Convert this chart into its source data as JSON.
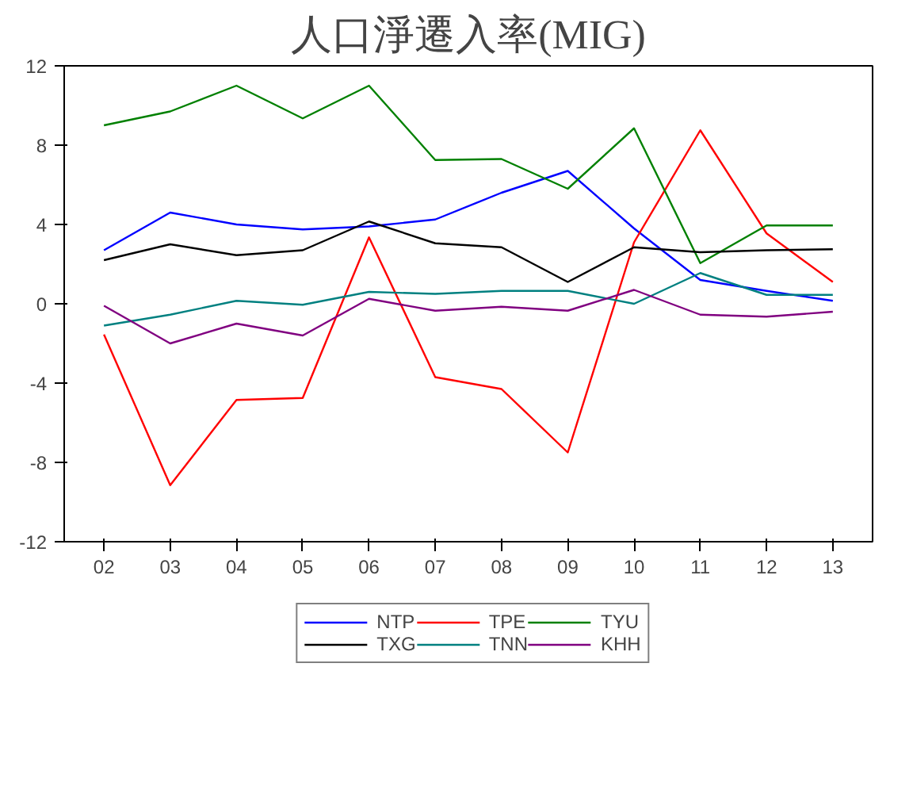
{
  "chart_data": {
    "type": "line",
    "title": "人口淨遷入率(MIG)",
    "categories": [
      "02",
      "03",
      "04",
      "05",
      "06",
      "07",
      "08",
      "09",
      "10",
      "11",
      "12",
      "13"
    ],
    "ylim": [
      -12,
      12
    ],
    "yticks": [
      -12,
      -8,
      -4,
      0,
      4,
      8,
      12
    ],
    "grid": false,
    "legend": "bottom",
    "series": [
      {
        "name": "NTP",
        "color": "#0000ff",
        "values": [
          2.7,
          4.6,
          4.0,
          3.75,
          3.9,
          4.25,
          5.6,
          6.7,
          3.8,
          1.2,
          0.65,
          0.15
        ]
      },
      {
        "name": "TPE",
        "color": "#ff0000",
        "values": [
          -1.55,
          -9.15,
          -4.85,
          -4.75,
          3.35,
          -3.7,
          -4.3,
          -7.5,
          3.1,
          8.75,
          3.55,
          1.1
        ]
      },
      {
        "name": "TYU",
        "color": "#008000",
        "values": [
          9.0,
          9.7,
          11.0,
          9.35,
          11.0,
          7.25,
          7.3,
          5.8,
          8.85,
          2.05,
          3.95,
          3.95
        ]
      },
      {
        "name": "TXG",
        "color": "#000000",
        "values": [
          2.2,
          3.0,
          2.45,
          2.7,
          4.15,
          3.05,
          2.85,
          1.1,
          2.85,
          2.6,
          2.7,
          2.75
        ]
      },
      {
        "name": "TNN",
        "color": "#008080",
        "values": [
          -1.1,
          -0.55,
          0.15,
          -0.05,
          0.6,
          0.5,
          0.65,
          0.65,
          0.0,
          1.55,
          0.45,
          0.45
        ]
      },
      {
        "name": "KHH",
        "color": "#800080",
        "values": [
          -0.1,
          -2.0,
          -1.0,
          -1.6,
          0.25,
          -0.35,
          -0.15,
          -0.35,
          0.7,
          -0.55,
          -0.65,
          -0.4
        ]
      }
    ]
  }
}
